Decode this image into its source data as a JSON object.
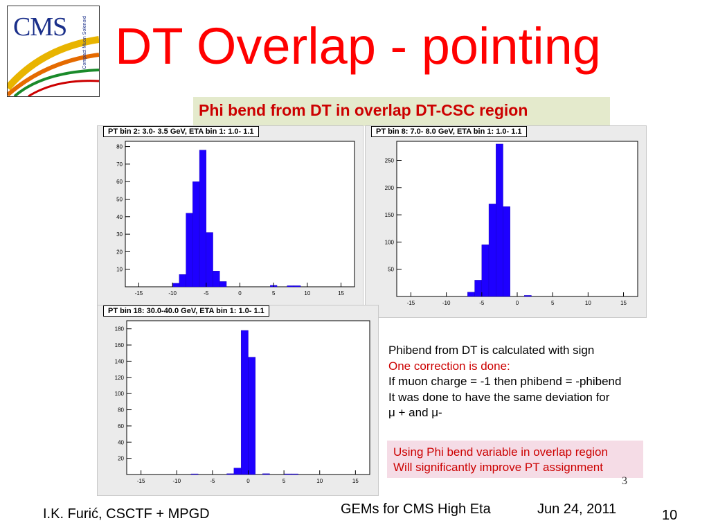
{
  "slide": {
    "title": "DT Overlap - pointing",
    "subtitle": "Phi bend from DT in overlap DT-CSC region",
    "logo_text": "CMS",
    "logo_subtext": "Compact Muon Solenoid",
    "notes_lines": [
      "Phibend from DT is calculated with sign",
      "One correction is done:",
      "If muon charge = -1 then phibend = -phibend",
      "It was done to have the same deviation for",
      "μ + and μ-"
    ],
    "highlight_lines": [
      "Using Phi bend variable in overlap region",
      "Will significantly improve PT assignment"
    ],
    "inner_page_number": "3",
    "footer_left": "I.K. Furić, CSCTF + MPGD",
    "footer_center": "GEMs for CMS High Eta",
    "footer_date": "Jun 24, 2011",
    "footer_page": "10"
  },
  "colors": {
    "title": "#ff0000",
    "accent_red": "#cc0000",
    "bar": "#1e00ff",
    "band": "#e4eacc",
    "pink": "#f5dce6"
  },
  "chart_data": [
    {
      "type": "bar",
      "title": "PT bin 2:  3.0- 3.5 GeV, ETA bin 1:  1.0- 1.1",
      "xlim": [
        -17,
        17
      ],
      "ylim": [
        0,
        83
      ],
      "xticks": [
        -15,
        -10,
        -5,
        0,
        5,
        10,
        15
      ],
      "yticks": [
        10,
        20,
        30,
        40,
        50,
        60,
        70,
        80
      ],
      "bin_width": 1,
      "bins": [
        {
          "x": -10,
          "y": 2
        },
        {
          "x": -9,
          "y": 7
        },
        {
          "x": -8,
          "y": 42
        },
        {
          "x": -7,
          "y": 60
        },
        {
          "x": -6,
          "y": 78
        },
        {
          "x": -5,
          "y": 31
        },
        {
          "x": -4,
          "y": 9
        },
        {
          "x": -3,
          "y": 3
        },
        {
          "x": 4.5,
          "y": 0.8
        },
        {
          "x": 7,
          "y": 0.6
        },
        {
          "x": 8,
          "y": 0.6
        }
      ]
    },
    {
      "type": "bar",
      "title": "PT bin 8:  7.0- 8.0 GeV, ETA bin 1:  1.0- 1.1",
      "xlim": [
        -17,
        17
      ],
      "ylim": [
        0,
        285
      ],
      "xticks": [
        -15,
        -10,
        -5,
        0,
        5,
        10,
        15
      ],
      "yticks": [
        50,
        100,
        150,
        200,
        250
      ],
      "bin_width": 1,
      "bins": [
        {
          "x": -7,
          "y": 8
        },
        {
          "x": -6,
          "y": 30
        },
        {
          "x": -5,
          "y": 95
        },
        {
          "x": -4,
          "y": 170
        },
        {
          "x": -3,
          "y": 280
        },
        {
          "x": -2,
          "y": 165
        },
        {
          "x": 1,
          "y": 2
        }
      ]
    },
    {
      "type": "bar",
      "title": "PT bin 18: 30.0-40.0 GeV, ETA bin 1:  1.0- 1.1",
      "xlim": [
        -17,
        17
      ],
      "ylim": [
        0,
        190
      ],
      "xticks": [
        -15,
        -10,
        -5,
        0,
        5,
        10,
        15
      ],
      "yticks": [
        20,
        40,
        60,
        80,
        100,
        120,
        140,
        160,
        180
      ],
      "bin_width": 1,
      "bins": [
        {
          "x": -8,
          "y": 0.8
        },
        {
          "x": -3,
          "y": 1
        },
        {
          "x": -2,
          "y": 8
        },
        {
          "x": -1,
          "y": 178
        },
        {
          "x": 0,
          "y": 145
        },
        {
          "x": 2,
          "y": 1
        },
        {
          "x": 5,
          "y": 0.8
        },
        {
          "x": 6,
          "y": 0.8
        }
      ]
    }
  ]
}
